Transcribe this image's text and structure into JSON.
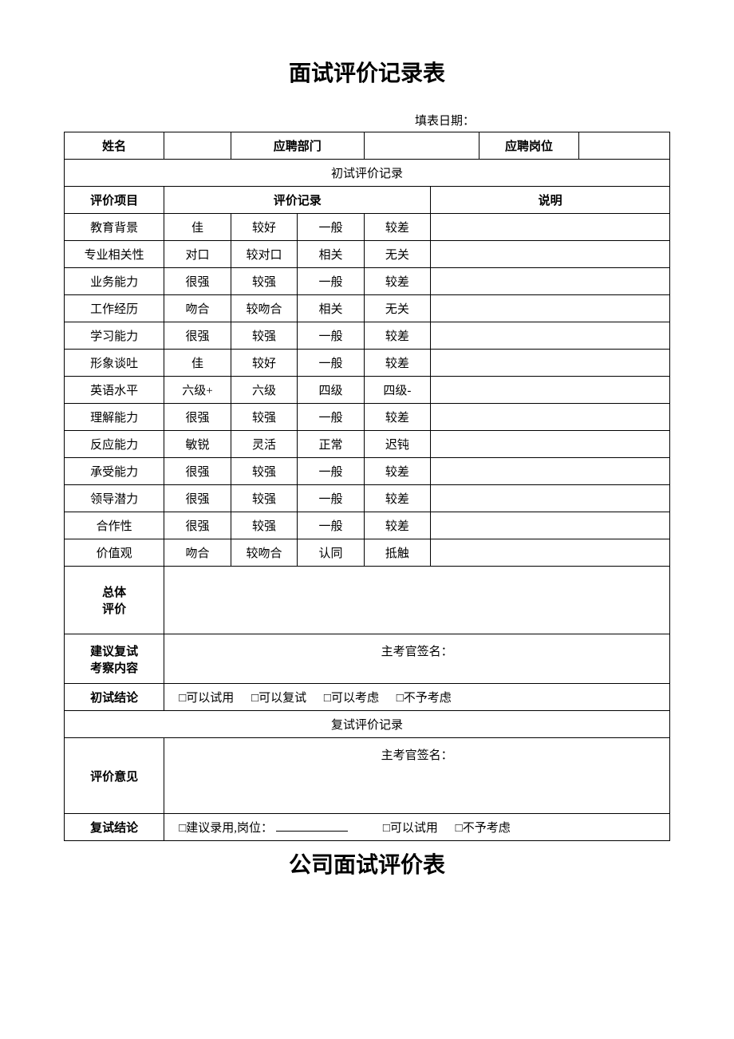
{
  "text_color": "#000000",
  "border_color": "#000000",
  "background_color": "#ffffff",
  "title": "面试评价记录表",
  "date_label": "填表日期：",
  "header_row": {
    "name_label": "姓名",
    "department_label": "应聘部门",
    "position_label": "应聘岗位"
  },
  "section1_title": "初试评价记录",
  "columns": {
    "item_label": "评价项目",
    "record_label": "评价记录",
    "note_label": "说明"
  },
  "evaluation_rows": [
    {
      "item": "教育背景",
      "options": [
        "佳",
        "较好",
        "一般",
        "较差"
      ]
    },
    {
      "item": "专业相关性",
      "options": [
        "对口",
        "较对口",
        "相关",
        "无关"
      ]
    },
    {
      "item": "业务能力",
      "options": [
        "很强",
        "较强",
        "一般",
        "较差"
      ]
    },
    {
      "item": "工作经历",
      "options": [
        "吻合",
        "较吻合",
        "相关",
        "无关"
      ]
    },
    {
      "item": "学习能力",
      "options": [
        "很强",
        "较强",
        "一般",
        "较差"
      ]
    },
    {
      "item": "形象谈吐",
      "options": [
        "佳",
        "较好",
        "一般",
        "较差"
      ]
    },
    {
      "item": "英语水平",
      "options": [
        "六级+",
        "六级",
        "四级",
        "四级-"
      ]
    },
    {
      "item": "理解能力",
      "options": [
        "很强",
        "较强",
        "一般",
        "较差"
      ]
    },
    {
      "item": "反应能力",
      "options": [
        "敏锐",
        "灵活",
        "正常",
        "迟钝"
      ]
    },
    {
      "item": "承受能力",
      "options": [
        "很强",
        "较强",
        "一般",
        "较差"
      ]
    },
    {
      "item": "领导潜力",
      "options": [
        "很强",
        "较强",
        "一般",
        "较差"
      ]
    },
    {
      "item": "合作性",
      "options": [
        "很强",
        "较强",
        "一般",
        "较差"
      ]
    },
    {
      "item": "价值观",
      "options": [
        "吻合",
        "较吻合",
        "认同",
        "抵触"
      ]
    }
  ],
  "overall_label_line1": "总体",
  "overall_label_line2": "评价",
  "suggestion_label_line1": "建议复试",
  "suggestion_label_line2": "考察内容",
  "signature_label": "主考官签名：",
  "first_conclusion_label": "初试结论",
  "first_conclusion_options": {
    "try": "可以试用",
    "retest": "可以复试",
    "consider": "可以考虑",
    "reject": "不予考虑"
  },
  "section2_title": "复试评价记录",
  "opinion_label": "评价意见",
  "final_conclusion_label": "复试结论",
  "final_conclusion_options": {
    "recommend": "建议录用,岗位：",
    "try": "可以试用",
    "reject": "不予考虑"
  },
  "sub_title": "公司面试评价表",
  "checkbox_char": "□"
}
